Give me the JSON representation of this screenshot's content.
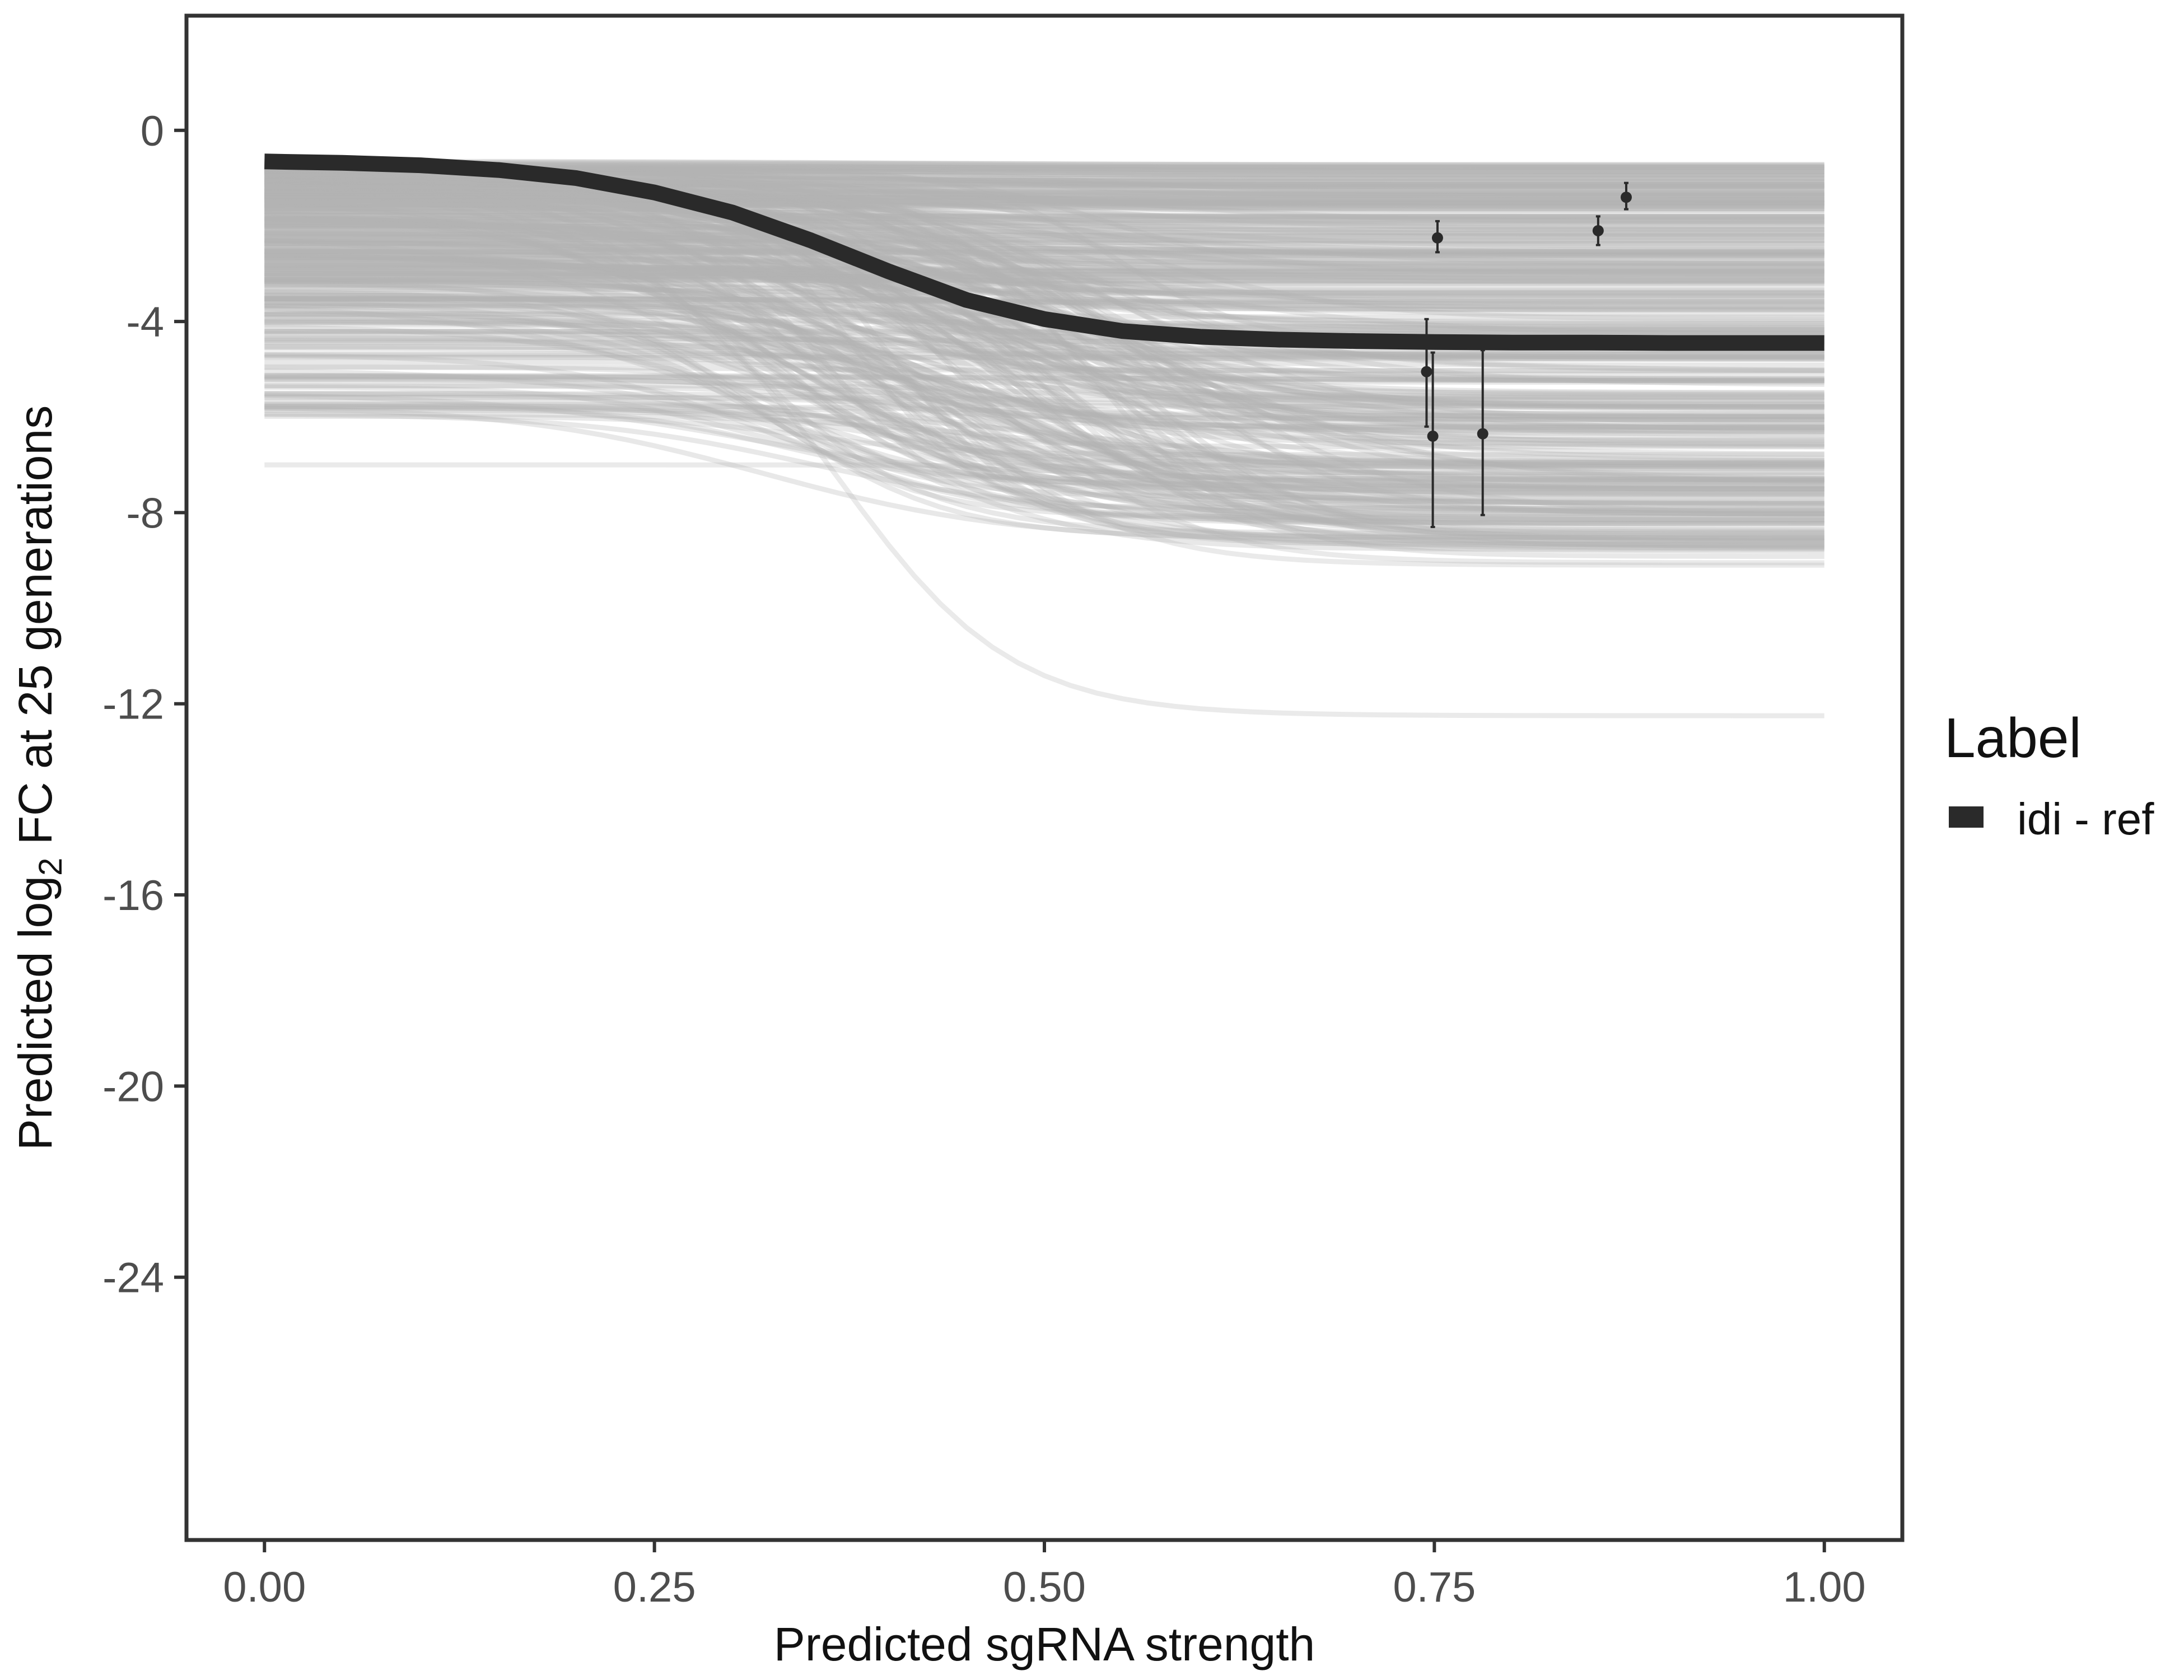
{
  "chart_data": {
    "type": "line",
    "xlabel": "Predicted sgRNA strength",
    "ylabel": {
      "prefix": "Predicted  log",
      "subscript": "2",
      "suffix": " FC at 25 generations"
    },
    "xlim": [
      -0.05,
      1.05
    ],
    "ylim": [
      -29.5,
      2.4
    ],
    "x_ticks": [
      0,
      0.25,
      0.5,
      0.75,
      1
    ],
    "x_tick_labels": [
      "0.00",
      "0.25",
      "0.50",
      "0.75",
      "1.00"
    ],
    "y_ticks": [
      0,
      -4,
      -8,
      -12,
      -16,
      -20,
      -24
    ],
    "y_tick_labels": [
      "0",
      "-4",
      "-8",
      "-12",
      "-16",
      "-20",
      "-24"
    ],
    "grid": false,
    "legend": {
      "title": "Label",
      "position": "right",
      "entries": [
        {
          "label": "idi - ref",
          "color": "#2a2a2a"
        }
      ]
    },
    "main_curve": {
      "name": "idi - ref",
      "color": "#2a2a2a",
      "x": [
        0,
        0.05,
        0.1,
        0.15,
        0.2,
        0.25,
        0.3,
        0.35,
        0.4,
        0.45,
        0.5,
        0.55,
        0.6,
        0.65,
        0.7,
        0.75,
        0.8,
        0.85,
        0.9,
        0.95,
        1.0
      ],
      "y": [
        -0.65,
        -0.68,
        -0.73,
        -0.83,
        -1.0,
        -1.3,
        -1.72,
        -2.3,
        -2.95,
        -3.55,
        -3.95,
        -4.2,
        -4.32,
        -4.38,
        -4.41,
        -4.43,
        -4.44,
        -4.44,
        -4.45,
        -4.45,
        -4.45
      ]
    },
    "posterior_draws": {
      "color": "#b3b3b3",
      "opacity": 0.3,
      "count": 380,
      "start_range": [
        -0.8,
        -6.0
      ],
      "end_range": [
        -0.7,
        -9.0
      ],
      "outliers": [
        {
          "start": -7.0,
          "end": -7.05,
          "midpoint": 0.5
        },
        {
          "start": -2.5,
          "end": -12.25,
          "midpoint": 0.37
        },
        {
          "start": -3.5,
          "end": -9.1,
          "midpoint": 0.45
        },
        {
          "start": -4.0,
          "end": -9.05,
          "midpoint": 0.5
        },
        {
          "start": -4.2,
          "end": -8.4,
          "midpoint": 0.52
        }
      ]
    },
    "observations": {
      "color": "#2a2a2a",
      "points": [
        {
          "x": 0.752,
          "y": -2.25,
          "ymin": -2.55,
          "ymax": -1.9
        },
        {
          "x": 0.855,
          "y": -2.1,
          "ymin": -2.4,
          "ymax": -1.8
        },
        {
          "x": 0.873,
          "y": -1.4,
          "ymin": -1.65,
          "ymax": -1.1
        },
        {
          "x": 0.745,
          "y": -5.05,
          "ymin": -6.2,
          "ymax": -3.95
        },
        {
          "x": 0.749,
          "y": -6.4,
          "ymin": -8.3,
          "ymax": -4.65
        },
        {
          "x": 0.781,
          "y": -6.35,
          "ymin": -8.05,
          "ymax": -4.6
        }
      ]
    }
  }
}
